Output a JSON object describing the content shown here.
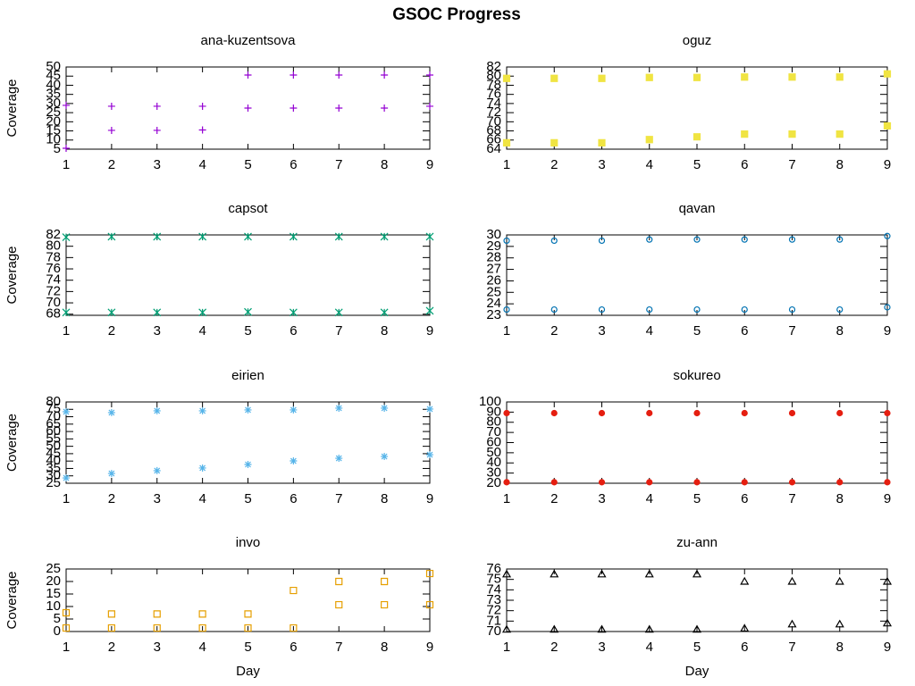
{
  "title": "GSOC Progress",
  "chart_data": [
    {
      "type": "scatter",
      "title": "ana-kuzentsova",
      "ylabel": "Coverage",
      "x": [
        1,
        2,
        3,
        4,
        5,
        6,
        7,
        8,
        9
      ],
      "xlim": [
        1,
        9
      ],
      "xticks": [
        1,
        2,
        3,
        4,
        5,
        6,
        7,
        8,
        9
      ],
      "ylim": [
        5,
        50
      ],
      "yticks": [
        5,
        10,
        15,
        20,
        25,
        30,
        35,
        40,
        45,
        50
      ],
      "series": [
        {
          "color": "#9400d3",
          "marker": "plus",
          "values": [
            29,
            28.5,
            28.5,
            28.5,
            27.5,
            27.5,
            27.5,
            27.5,
            28.5
          ]
        },
        {
          "color": "#9400d3",
          "marker": "plus",
          "values": [
            5.5,
            15.3,
            15.3,
            15.5,
            45.6,
            45.6,
            45.6,
            45.6,
            45.6
          ]
        }
      ]
    },
    {
      "type": "scatter",
      "title": "oguz",
      "x": [
        1,
        2,
        3,
        4,
        5,
        6,
        7,
        8,
        9
      ],
      "xlim": [
        1,
        9
      ],
      "xticks": [
        1,
        2,
        3,
        4,
        5,
        6,
        7,
        8,
        9
      ],
      "ylim": [
        64,
        82
      ],
      "yticks": [
        64,
        66,
        68,
        70,
        72,
        74,
        76,
        78,
        80,
        82
      ],
      "series": [
        {
          "color": "#f0e442",
          "marker": "square-filled",
          "values": [
            79.5,
            79.5,
            79.5,
            79.7,
            79.7,
            79.8,
            79.8,
            79.8,
            80.5
          ]
        },
        {
          "color": "#f0e442",
          "marker": "square-filled",
          "values": [
            65.4,
            65.4,
            65.4,
            66.1,
            66.7,
            67.3,
            67.3,
            67.3,
            69.1
          ]
        }
      ]
    },
    {
      "type": "scatter",
      "title": "capsot",
      "ylabel": "Coverage",
      "x": [
        1,
        2,
        3,
        4,
        5,
        6,
        7,
        8,
        9
      ],
      "xlim": [
        1,
        9
      ],
      "xticks": [
        1,
        2,
        3,
        4,
        5,
        6,
        7,
        8,
        9
      ],
      "ylim": [
        67.8,
        82
      ],
      "yticks": [
        68,
        70,
        72,
        74,
        76,
        78,
        80,
        82
      ],
      "series": [
        {
          "color": "#009e73",
          "marker": "star",
          "values": [
            81.6,
            81.7,
            81.7,
            81.7,
            81.7,
            81.7,
            81.7,
            81.7,
            81.7
          ]
        },
        {
          "color": "#009e73",
          "marker": "star",
          "values": [
            68.3,
            68.3,
            68.3,
            68.3,
            68.4,
            68.3,
            68.3,
            68.3,
            68.6
          ]
        }
      ]
    },
    {
      "type": "scatter",
      "title": "qavan",
      "x": [
        1,
        2,
        3,
        4,
        5,
        6,
        7,
        8,
        9
      ],
      "xlim": [
        1,
        9
      ],
      "xticks": [
        1,
        2,
        3,
        4,
        5,
        6,
        7,
        8,
        9
      ],
      "ylim": [
        23,
        30
      ],
      "yticks": [
        23,
        24,
        25,
        26,
        27,
        28,
        29,
        30
      ],
      "series": [
        {
          "color": "#0072b2",
          "marker": "circle",
          "values": [
            29.5,
            29.5,
            29.5,
            29.6,
            29.6,
            29.6,
            29.6,
            29.6,
            29.9
          ]
        },
        {
          "color": "#0072b2",
          "marker": "circle",
          "values": [
            23.5,
            23.5,
            23.5,
            23.5,
            23.5,
            23.5,
            23.5,
            23.5,
            23.7
          ]
        }
      ]
    },
    {
      "type": "scatter",
      "title": "eirien",
      "ylabel": "Coverage",
      "x": [
        1,
        2,
        3,
        4,
        5,
        6,
        7,
        8,
        9
      ],
      "xlim": [
        1,
        9
      ],
      "xticks": [
        1,
        2,
        3,
        4,
        5,
        6,
        7,
        8,
        9
      ],
      "ylim": [
        25,
        80
      ],
      "yticks": [
        25,
        30,
        35,
        40,
        45,
        50,
        55,
        60,
        65,
        70,
        75,
        80
      ],
      "series": [
        {
          "color": "#56b4e9",
          "marker": "asterisk",
          "values": [
            73.4,
            72.8,
            74,
            74,
            74.6,
            74.6,
            75.8,
            75.8,
            75.2
          ]
        },
        {
          "color": "#56b4e9",
          "marker": "asterisk",
          "values": [
            28.6,
            31.6,
            33.5,
            35.3,
            37.7,
            40.1,
            41.9,
            43.1,
            44.3
          ]
        }
      ]
    },
    {
      "type": "scatter",
      "title": "sokureo",
      "x": [
        1,
        2,
        3,
        4,
        5,
        6,
        7,
        8,
        9
      ],
      "xlim": [
        1,
        9
      ],
      "xticks": [
        1,
        2,
        3,
        4,
        5,
        6,
        7,
        8,
        9
      ],
      "ylim": [
        20,
        100
      ],
      "yticks": [
        20,
        30,
        40,
        50,
        60,
        70,
        80,
        90,
        100
      ],
      "series": [
        {
          "color": "#e51e10",
          "marker": "dot",
          "values": [
            89,
            89,
            89,
            89,
            89,
            89,
            89,
            89,
            89
          ]
        },
        {
          "color": "#e51e10",
          "marker": "dot",
          "values": [
            21,
            21,
            21,
            21,
            21,
            21,
            21,
            21,
            21
          ]
        }
      ]
    },
    {
      "type": "scatter",
      "title": "invo",
      "ylabel": "Coverage",
      "xlabel": "Day",
      "x": [
        1,
        2,
        3,
        4,
        5,
        6,
        7,
        8,
        9
      ],
      "xlim": [
        1,
        9
      ],
      "xticks": [
        1,
        2,
        3,
        4,
        5,
        6,
        7,
        8,
        9
      ],
      "ylim": [
        0,
        25
      ],
      "yticks": [
        0,
        5,
        10,
        15,
        20,
        25
      ],
      "series": [
        {
          "color": "#e69f00",
          "marker": "square",
          "values": [
            7.5,
            7,
            7,
            7,
            7,
            16.4,
            20,
            20,
            23.2
          ]
        },
        {
          "color": "#e69f00",
          "marker": "square",
          "values": [
            1.4,
            1.4,
            1.4,
            1.4,
            1.4,
            1.4,
            10.7,
            10.7,
            10.7
          ]
        }
      ]
    },
    {
      "type": "scatter",
      "title": "zu-ann",
      "xlabel": "Day",
      "x": [
        1,
        2,
        3,
        4,
        5,
        6,
        7,
        8,
        9
      ],
      "xlim": [
        1,
        9
      ],
      "xticks": [
        1,
        2,
        3,
        4,
        5,
        6,
        7,
        8,
        9
      ],
      "ylim": [
        70,
        76
      ],
      "yticks": [
        70,
        71,
        72,
        73,
        74,
        75,
        76
      ],
      "series": [
        {
          "color": "#000000",
          "marker": "triangle",
          "values": [
            75.5,
            75.5,
            75.5,
            75.5,
            75.5,
            74.8,
            74.8,
            74.8,
            74.8
          ]
        },
        {
          "color": "#000000",
          "marker": "triangle",
          "values": [
            70.2,
            70.2,
            70.2,
            70.2,
            70.2,
            70.3,
            70.7,
            70.7,
            70.8
          ]
        }
      ]
    }
  ]
}
